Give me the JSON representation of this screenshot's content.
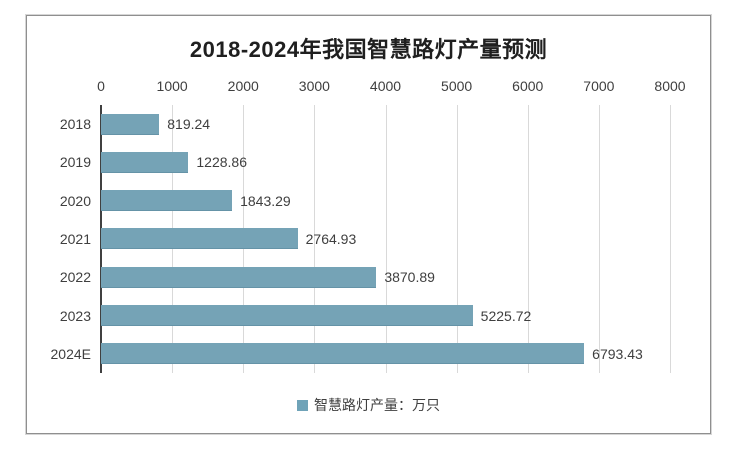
{
  "chart_data": {
    "type": "bar",
    "orientation": "horizontal",
    "title": "2018-2024年我国智慧路灯产量预测",
    "categories": [
      "2018",
      "2019",
      "2020",
      "2021",
      "2022",
      "2023",
      "2024E"
    ],
    "series": [
      {
        "name": "智慧路灯产量：万只",
        "values": [
          819.24,
          1228.86,
          1843.29,
          2764.93,
          3870.89,
          5225.72,
          6793.43
        ]
      }
    ],
    "value_labels": [
      "819.24",
      "1228.86",
      "1843.29",
      "2764.93",
      "3870.89",
      "5225.72",
      "6793.43"
    ],
    "x_axis": {
      "position": "top",
      "min": 0,
      "max": 8000,
      "tick_interval": 1000,
      "tick_labels": [
        "0",
        "1000",
        "2000",
        "3000",
        "4000",
        "5000",
        "6000",
        "7000",
        "8000"
      ]
    },
    "grid": true,
    "legend": {
      "position": "bottom",
      "entries": [
        {
          "label": "智慧路灯产量：万只",
          "marker_color": "#6fa3b8"
        }
      ]
    },
    "colors": {
      "bar": "#75a3b6",
      "gridline": "#d9d9d9",
      "axis_line": "#404040",
      "text": "#3f3f3f",
      "title_text": "#1f1f1f",
      "frame_border": "#8f8f8f"
    }
  }
}
